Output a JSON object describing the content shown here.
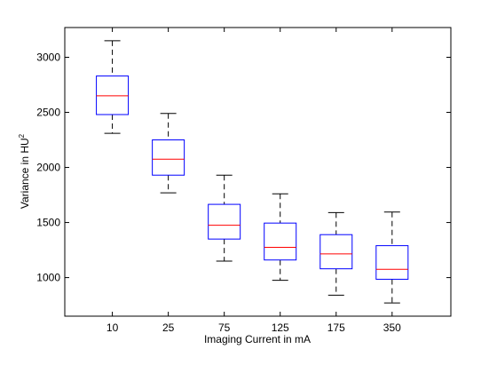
{
  "chart_data": {
    "type": "box",
    "title": "",
    "xlabel": "Imaging Current in mA",
    "ylabel_main": "Variance in HU",
    "ylabel_sup": "2",
    "categories": [
      "10",
      "25",
      "75",
      "125",
      "175",
      "350"
    ],
    "boxes": [
      {
        "whisker_low": 2310,
        "q1": 2480,
        "median": 2650,
        "q3": 2830,
        "whisker_high": 3150
      },
      {
        "whisker_low": 1770,
        "q1": 1930,
        "median": 2075,
        "q3": 2250,
        "whisker_high": 2490
      },
      {
        "whisker_low": 1150,
        "q1": 1350,
        "median": 1475,
        "q3": 1665,
        "whisker_high": 1930
      },
      {
        "whisker_low": 975,
        "q1": 1160,
        "median": 1275,
        "q3": 1495,
        "whisker_high": 1760
      },
      {
        "whisker_low": 840,
        "q1": 1080,
        "median": 1215,
        "q3": 1390,
        "whisker_high": 1590
      },
      {
        "whisker_low": 770,
        "q1": 985,
        "median": 1075,
        "q3": 1290,
        "whisker_high": 1595
      }
    ],
    "ylim": [
      650,
      3270
    ],
    "yticks": [
      1000,
      1500,
      2000,
      2500,
      3000
    ],
    "grid": false,
    "colors": {
      "box": "#0000ff",
      "median": "#ff0000",
      "whisker": "#000000",
      "axes": "#000000"
    }
  }
}
